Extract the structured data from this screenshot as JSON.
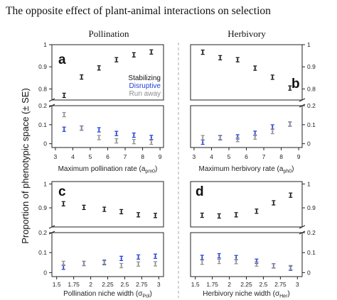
{
  "figure": {
    "title": "The opposite effect of plant-animal interactions on selection",
    "ylabel": "Proportion of phenotypic space (± SE)",
    "column_headers": [
      "Pollination",
      "Herbivory"
    ]
  },
  "colors": {
    "stabilizing": "#111111",
    "disruptive": "#1f3fd6",
    "runaway": "#8c8c8c",
    "divider": "#aaaaaa"
  },
  "chart_data": [
    {
      "type": "scatter",
      "panel_label": "a",
      "xlabel": "Maximum pollination rate (a",
      "xlabel_sub": "pm0",
      "xticks": [
        "3",
        "4",
        "5",
        "6",
        "7",
        "8",
        "9"
      ],
      "xlim": [
        2.8,
        9.2
      ],
      "upper_yticks": [
        "0.8",
        "0.9",
        "1"
      ],
      "upper_ylim": [
        0.75,
        1.0
      ],
      "lower_yticks": [
        "0",
        "0.1",
        "0.2"
      ],
      "lower_ylim": [
        -0.02,
        0.2
      ],
      "legend": [
        "Stabilizing",
        "Disruptive",
        "Run away"
      ],
      "series": [
        {
          "name": "Stabilizing",
          "x": [
            3.5,
            4.5,
            5.5,
            6.5,
            7.5,
            8.5
          ],
          "y": [
            0.771,
            0.854,
            0.895,
            0.932,
            0.954,
            0.967
          ]
        },
        {
          "name": "Disruptive",
          "x": [
            3.5,
            4.5,
            5.5,
            6.5,
            7.5,
            8.5
          ],
          "y": [
            0.076,
            0.082,
            0.073,
            0.054,
            0.045,
            0.033
          ]
        },
        {
          "name": "Run away",
          "x": [
            3.5,
            4.5,
            5.5,
            6.5,
            7.5,
            8.5
          ],
          "y": [
            0.153,
            0.083,
            0.032,
            0.015,
            0.011,
            0.008
          ]
        }
      ]
    },
    {
      "type": "scatter",
      "panel_label": "b",
      "xlabel": "Maximum herbivory rate (a",
      "xlabel_sub": "ph0",
      "xticks": [
        "3",
        "4",
        "5",
        "6",
        "7",
        "8",
        "9"
      ],
      "xlim": [
        2.8,
        9.2
      ],
      "upper_yticks": [
        "0.8",
        "0.9",
        "1"
      ],
      "upper_ylim": [
        0.75,
        1.0
      ],
      "lower_yticks": [
        "0",
        "0.1",
        "0.2"
      ],
      "lower_ylim": [
        -0.02,
        0.2
      ],
      "series": [
        {
          "name": "Stabilizing",
          "x": [
            3.5,
            4.5,
            5.5,
            6.5,
            7.5,
            8.5
          ],
          "y": [
            0.966,
            0.941,
            0.932,
            0.894,
            0.853,
            0.804
          ]
        },
        {
          "name": "Disruptive",
          "x": [
            3.5,
            4.5,
            5.5,
            6.5,
            7.5,
            8.5
          ],
          "y": [
            0.008,
            0.031,
            0.036,
            0.055,
            0.088,
            0.103
          ]
        },
        {
          "name": "Run away",
          "x": [
            3.5,
            4.5,
            5.5,
            6.5,
            7.5,
            8.5
          ],
          "y": [
            0.032,
            0.033,
            0.022,
            0.035,
            0.064,
            0.104
          ]
        }
      ]
    },
    {
      "type": "scatter",
      "panel_label": "c",
      "xlabel": "Pollination niche width (σ",
      "xlabel_sub": "Pol",
      "xticks": [
        "1.5",
        "1.75",
        "2",
        "2.25",
        "2.5",
        "2.75",
        "3"
      ],
      "xlim": [
        1.43,
        3.07
      ],
      "upper_yticks": [
        "0.9",
        "1"
      ],
      "upper_ylim": [
        0.82,
        1.01
      ],
      "lower_yticks": [
        "0",
        "0.1",
        "0.2"
      ],
      "lower_ylim": [
        -0.02,
        0.2
      ],
      "series": [
        {
          "name": "Stabilizing",
          "x": [
            1.6,
            1.9,
            2.2,
            2.45,
            2.7,
            2.95
          ],
          "y": [
            0.917,
            0.902,
            0.894,
            0.884,
            0.871,
            0.868
          ]
        },
        {
          "name": "Disruptive",
          "x": [
            1.6,
            1.9,
            2.2,
            2.45,
            2.7,
            2.95
          ],
          "y": [
            0.027,
            0.046,
            0.052,
            0.071,
            0.078,
            0.082
          ]
        },
        {
          "name": "Run away",
          "x": [
            1.6,
            1.9,
            2.2,
            2.45,
            2.7,
            2.95
          ],
          "y": [
            0.046,
            0.045,
            0.049,
            0.035,
            0.043,
            0.044
          ]
        }
      ]
    },
    {
      "type": "scatter",
      "panel_label": "d",
      "xlabel": "Herbivory niche width (σ",
      "xlabel_sub": "Her",
      "xticks": [
        "1.5",
        "1.75",
        "2",
        "2.25",
        "2.5",
        "2.75",
        "3"
      ],
      "xlim": [
        1.43,
        3.07
      ],
      "upper_yticks": [
        "0.9",
        "1"
      ],
      "upper_ylim": [
        0.82,
        1.01
      ],
      "lower_yticks": [
        "0",
        "0.1",
        "0.2"
      ],
      "lower_ylim": [
        -0.02,
        0.2
      ],
      "series": [
        {
          "name": "Stabilizing",
          "x": [
            1.6,
            1.85,
            2.1,
            2.4,
            2.65,
            2.9
          ],
          "y": [
            0.869,
            0.866,
            0.871,
            0.886,
            0.921,
            0.953
          ]
        },
        {
          "name": "Disruptive",
          "x": [
            1.6,
            1.85,
            2.1,
            2.4,
            2.65,
            2.9
          ],
          "y": [
            0.076,
            0.084,
            0.075,
            0.057,
            0.034,
            0.022
          ]
        },
        {
          "name": "Run away",
          "x": [
            1.6,
            1.85,
            2.1,
            2.4,
            2.65,
            2.9
          ],
          "y": [
            0.052,
            0.056,
            0.055,
            0.043,
            0.033,
            0.025
          ]
        }
      ]
    }
  ]
}
